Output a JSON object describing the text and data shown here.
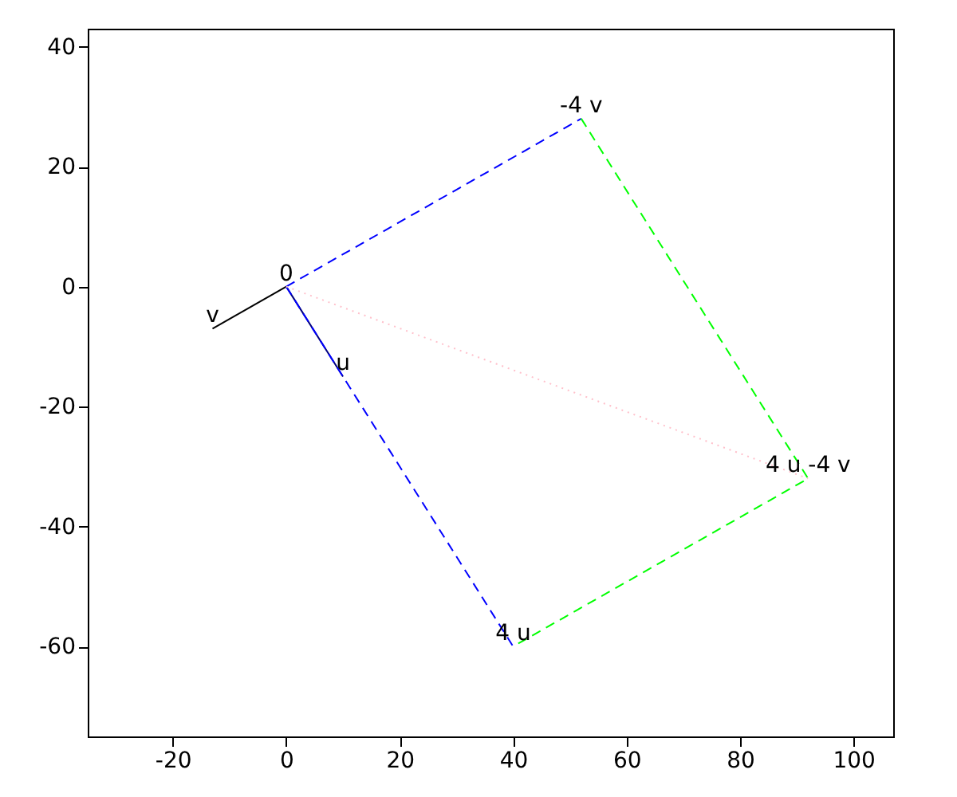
{
  "chart_data": {
    "type": "line",
    "xlim": [
      -35,
      107
    ],
    "ylim": [
      -75,
      43
    ],
    "xticks": [
      -20,
      0,
      20,
      40,
      60,
      80,
      100
    ],
    "yticks": [
      -60,
      -40,
      -20,
      0,
      20,
      40
    ],
    "grid": false,
    "series": [
      {
        "color": "#000000",
        "x": [
          0,
          -13
        ],
        "values": [
          0,
          -7
        ],
        "line_style": "solid"
      },
      {
        "color": "#000080",
        "x": [
          0,
          10
        ],
        "values": [
          0,
          -15
        ],
        "line_style": "solid"
      },
      {
        "color": "#0000ff",
        "x": [
          0,
          52
        ],
        "values": [
          0,
          28
        ],
        "line_style": "dashed"
      },
      {
        "color": "#0000ff",
        "x": [
          0,
          40
        ],
        "values": [
          0,
          -60
        ],
        "line_style": "dashed"
      },
      {
        "color": "#00ff00",
        "x": [
          52,
          92,
          40
        ],
        "values": [
          28,
          -32,
          -60
        ],
        "line_style": "dashed"
      },
      {
        "color": "#ffc0cb",
        "x": [
          0,
          92
        ],
        "values": [
          0,
          -32
        ],
        "line_style": "dotted"
      }
    ],
    "annotations": [
      {
        "text": "0",
        "x": 0,
        "y": 0
      },
      {
        "text": "v",
        "x": -13,
        "y": -7
      },
      {
        "text": "u",
        "x": 10,
        "y": -15
      },
      {
        "text": "-4 v",
        "x": 52,
        "y": 28
      },
      {
        "text": "4 u",
        "x": 40,
        "y": -60
      },
      {
        "text": "4 u -4 v",
        "x": 92,
        "y": -32
      }
    ]
  }
}
